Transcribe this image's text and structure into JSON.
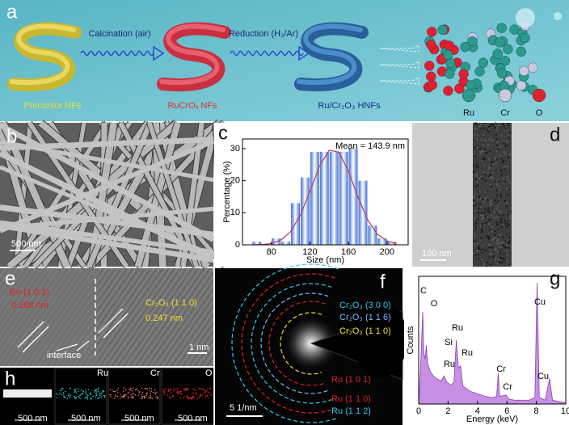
{
  "figure": {
    "a": {
      "label": "a",
      "steps": [
        "Calcination (air)",
        "Reduction (H₂/Ar)"
      ],
      "materials": [
        "Precursor NFs",
        "RuCrOₓ NFs",
        "Ru/Cr₂O₃ HNFs"
      ],
      "legend": [
        "Ru",
        "Cr",
        "O"
      ]
    },
    "b": {
      "label": "b",
      "scale": "500 nm"
    },
    "c": {
      "label": "c"
    },
    "d": {
      "label": "d",
      "scale": "100 nm"
    },
    "e": {
      "label": "e",
      "annotations": [
        "Ru (1 0 1)",
        "0.208 nm",
        "Cr₂O₃ (1 1 0)",
        "0.247 nm",
        "interface"
      ],
      "scale": "1 nm"
    },
    "f": {
      "label": "f",
      "rings": [
        "Cr₂O₃ (3 0 0)",
        "Cr₂O₃ (1 1 6)",
        "Cr₂O₃ (1 1 0)",
        "Ru (1 0 1)",
        "Ru (1 1 0)",
        "Ru (1 1 2)"
      ],
      "scale": "5 1/nm"
    },
    "g": {
      "label": "g"
    },
    "h": {
      "label": "h",
      "maps": [
        "Ru",
        "Cr",
        "O"
      ],
      "scale": "500 nm"
    }
  },
  "chart_data": [
    {
      "type": "histogram",
      "xlabel": "Size (nm)",
      "ylabel": "Percentage (%)",
      "annotation": "Mean = 143.9 nm",
      "bins": [
        60,
        70,
        80,
        90,
        100,
        110,
        120,
        130,
        140,
        150,
        160,
        170,
        180,
        190,
        200,
        210
      ],
      "values": [
        1,
        0,
        2,
        1,
        13,
        21,
        29,
        29,
        29,
        29,
        30,
        20,
        6,
        2,
        1
      ],
      "color": "#3f6fd0",
      "fit": {
        "color": "#c0395a",
        "x": [
          60,
          70,
          80,
          90,
          100,
          110,
          120,
          130,
          140,
          150,
          160,
          170,
          180,
          190,
          200,
          210
        ],
        "y": [
          0.0,
          0.1,
          0.4,
          1.5,
          4.1,
          9.2,
          16.6,
          24.6,
          29.5,
          28.9,
          23.0,
          14.8,
          7.8,
          3.3,
          1.2,
          0.3
        ]
      },
      "xlim": [
        50,
        222
      ],
      "xticks": [
        80,
        120,
        160,
        200
      ],
      "ylim": [
        0,
        33
      ],
      "yticks": [
        0,
        10,
        20,
        30
      ]
    },
    {
      "type": "area",
      "xlabel": "Energy (keV)",
      "ylabel": "Counts",
      "color": "#c890e4",
      "x": [
        0,
        0.1,
        0.2,
        0.28,
        0.35,
        0.45,
        0.52,
        0.6,
        0.8,
        1.0,
        1.2,
        1.5,
        1.74,
        1.9,
        2.2,
        2.4,
        2.56,
        2.7,
        2.85,
        3.0,
        3.5,
        4.0,
        4.5,
        5.0,
        5.3,
        5.41,
        5.5,
        5.95,
        6.1,
        6.5,
        7.0,
        7.5,
        7.9,
        8.05,
        8.2,
        8.6,
        8.9,
        9.1,
        9.5,
        10
      ],
      "values": [
        0,
        20,
        50,
        72,
        40,
        35,
        46,
        32,
        25,
        22,
        20,
        18,
        22,
        17,
        15,
        17,
        50,
        28,
        30,
        14,
        10,
        8,
        6,
        5,
        6,
        24,
        6,
        7,
        4,
        3,
        3,
        3,
        5,
        95,
        5,
        3,
        20,
        3,
        2,
        1
      ],
      "peak_labels": [
        "C",
        "O",
        "Si",
        "Ru",
        "Ru",
        "Ru",
        "Cr",
        "Cr",
        "Cu",
        "Cu"
      ],
      "xlim": [
        0,
        10
      ],
      "xticks": [
        0,
        2,
        4,
        6,
        8,
        10
      ],
      "ylim": [
        0,
        100
      ]
    }
  ]
}
